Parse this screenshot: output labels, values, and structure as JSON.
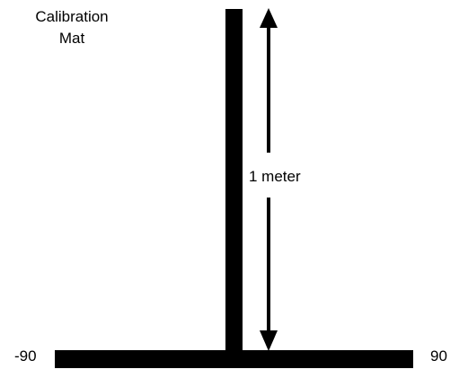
{
  "title": {
    "line1": "Calibration",
    "line2": "Mat"
  },
  "measurement_label": "1 meter",
  "left_angle_label": "-90",
  "right_angle_label": "90",
  "colors": {
    "foreground": "#000000",
    "background": "#ffffff"
  }
}
